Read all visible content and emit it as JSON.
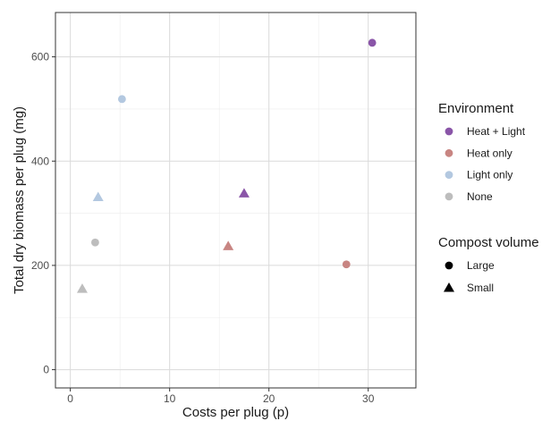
{
  "chart_data": {
    "type": "scatter",
    "xlabel": "Costs per plug (p)",
    "ylabel": "Total dry biomass per plug (mg)",
    "xlim": [
      -1.5,
      34.8
    ],
    "ylim": [
      -35,
      685
    ],
    "x_ticks": [
      0,
      10,
      20,
      30
    ],
    "y_ticks": [
      0,
      200,
      400,
      600
    ],
    "x_tick_labels": [
      "0",
      "10",
      "20",
      "30"
    ],
    "y_tick_labels": [
      "0",
      "200",
      "400",
      "600"
    ],
    "grid": true,
    "legend_position": "right",
    "legends": {
      "color": {
        "title": "Environment",
        "entries": [
          {
            "label": "Heat + Light",
            "color": "#8a55a8"
          },
          {
            "label": "Heat only",
            "color": "#c88582"
          },
          {
            "label": "Light only",
            "color": "#b3c8e0"
          },
          {
            "label": "None",
            "color": "#bdbdbd"
          }
        ]
      },
      "shape": {
        "title": "Compost volume",
        "entries": [
          {
            "label": "Large",
            "shape": "circle"
          },
          {
            "label": "Small",
            "shape": "triangle"
          }
        ]
      }
    },
    "points": [
      {
        "x": 30.4,
        "y": 627,
        "environment": "Heat + Light",
        "compost": "Large"
      },
      {
        "x": 17.5,
        "y": 338,
        "environment": "Heat + Light",
        "compost": "Small"
      },
      {
        "x": 27.8,
        "y": 202,
        "environment": "Heat only",
        "compost": "Large"
      },
      {
        "x": 15.9,
        "y": 237,
        "environment": "Heat only",
        "compost": "Small"
      },
      {
        "x": 5.2,
        "y": 519,
        "environment": "Light only",
        "compost": "Large"
      },
      {
        "x": 2.8,
        "y": 331,
        "environment": "Light only",
        "compost": "Small"
      },
      {
        "x": 2.5,
        "y": 244,
        "environment": "None",
        "compost": "Large"
      },
      {
        "x": 1.2,
        "y": 155,
        "environment": "None",
        "compost": "Small"
      }
    ]
  }
}
